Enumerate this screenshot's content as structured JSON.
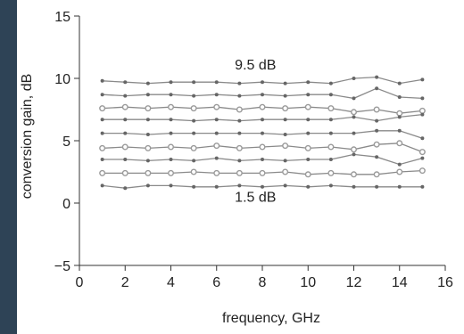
{
  "chart_data": {
    "type": "line",
    "xlabel": "frequency, GHz",
    "ylabel": "conversion gain, dB",
    "xlim": [
      0,
      16
    ],
    "ylim": [
      -5,
      15
    ],
    "xticks": [
      "0",
      "2",
      "4",
      "6",
      "8",
      "10",
      "12",
      "14",
      "16"
    ],
    "yticks": [
      "−5",
      "0",
      "5",
      "10",
      "15"
    ],
    "grid": false,
    "x": [
      1,
      2,
      3,
      4,
      5,
      6,
      7,
      8,
      9,
      10,
      11,
      12,
      13,
      14,
      15
    ],
    "annotations": [
      {
        "text": "9.5 dB",
        "x": 7.7,
        "y": 10.7
      },
      {
        "text": "1.5 dB",
        "x": 7.7,
        "y": 0.1
      }
    ],
    "series": [
      {
        "values": [
          9.8,
          9.7,
          9.6,
          9.7,
          9.7,
          9.7,
          9.6,
          9.7,
          9.6,
          9.7,
          9.6,
          10.0,
          10.1,
          9.6,
          9.9
        ]
      },
      {
        "values": [
          8.7,
          8.6,
          8.7,
          8.7,
          8.6,
          8.7,
          8.6,
          8.7,
          8.6,
          8.7,
          8.7,
          8.4,
          9.2,
          8.5,
          8.4
        ]
      },
      {
        "values": [
          7.6,
          7.7,
          7.6,
          7.7,
          7.6,
          7.7,
          7.5,
          7.7,
          7.6,
          7.7,
          7.6,
          7.3,
          7.5,
          7.2,
          7.4
        ]
      },
      {
        "values": [
          6.7,
          6.7,
          6.7,
          6.7,
          6.6,
          6.7,
          6.6,
          6.7,
          6.7,
          6.7,
          6.7,
          6.9,
          6.6,
          6.9,
          7.1
        ]
      },
      {
        "values": [
          5.6,
          5.6,
          5.5,
          5.6,
          5.6,
          5.6,
          5.6,
          5.6,
          5.5,
          5.6,
          5.6,
          5.6,
          5.8,
          5.8,
          5.2
        ]
      },
      {
        "values": [
          4.4,
          4.5,
          4.4,
          4.5,
          4.4,
          4.6,
          4.4,
          4.5,
          4.6,
          4.4,
          4.5,
          4.3,
          4.7,
          4.8,
          4.1
        ]
      },
      {
        "values": [
          3.5,
          3.5,
          3.4,
          3.5,
          3.4,
          3.6,
          3.4,
          3.5,
          3.4,
          3.5,
          3.5,
          3.9,
          3.7,
          3.1,
          3.6
        ]
      },
      {
        "values": [
          2.4,
          2.4,
          2.4,
          2.4,
          2.5,
          2.4,
          2.4,
          2.4,
          2.5,
          2.3,
          2.4,
          2.3,
          2.3,
          2.5,
          2.6
        ]
      },
      {
        "values": [
          1.4,
          1.2,
          1.4,
          1.4,
          1.3,
          1.3,
          1.4,
          1.3,
          1.4,
          1.3,
          1.4,
          1.3,
          1.3,
          1.3,
          1.3
        ]
      }
    ],
    "colors": {
      "line": "#8a8a8a",
      "marker": "#666666",
      "hollow_marker": "#9a9a9a"
    }
  }
}
